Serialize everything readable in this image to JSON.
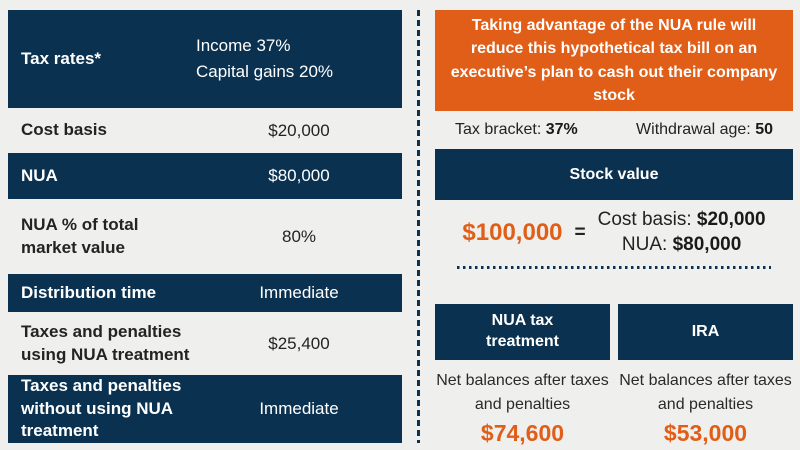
{
  "colors": {
    "navy": "#0b3150",
    "orange": "#e05e17",
    "background": "#efefee",
    "white": "#ffffff",
    "text_dark": "#232323"
  },
  "left_table": {
    "rows": [
      {
        "label": "Tax rates*",
        "value_lines": [
          "Income 37%",
          "Capital gains 20%"
        ],
        "style": "navy"
      },
      {
        "label": "Cost basis",
        "value": "$20,000",
        "style": "light"
      },
      {
        "label": "NUA",
        "value": "$80,000",
        "style": "navy"
      },
      {
        "label": "NUA % of total market value",
        "value": "80%",
        "style": "light"
      },
      {
        "label": "Distribution time",
        "value": "Immediate",
        "style": "navy"
      },
      {
        "label": "Taxes and penalties using NUA treatment",
        "value": "$25,400",
        "style": "light"
      },
      {
        "label": "Taxes and penalties without using NUA treatment",
        "value": "Immediate",
        "style": "navy"
      }
    ]
  },
  "right_panel": {
    "headline": "Taking advantage of the NUA rule will reduce this hypothetical tax bill on an executive’s plan to cash out their company stock",
    "tax_bracket": {
      "label": "Tax bracket: ",
      "value": "37%"
    },
    "withdrawal_age": {
      "label": "Withdrawal age: ",
      "value": "50"
    },
    "stock_value": {
      "header": "Stock value",
      "total": "$100,000",
      "equals_sign": "=",
      "cost_basis_label": "Cost basis: ",
      "cost_basis_value": "$20,000",
      "nua_label": "NUA: ",
      "nua_value": "$80,000"
    },
    "comparison_columns": [
      {
        "header": "NUA tax treatment",
        "description": "Net balances after taxes and penalties",
        "value": "$74,600"
      },
      {
        "header": "IRA",
        "description": "Net balances after taxes and penalties",
        "value": "$53,000"
      }
    ]
  },
  "chart_data": {
    "type": "table",
    "title": "Taking advantage of the NUA rule will reduce this hypothetical tax bill on an executive’s plan to cash out their company stock",
    "assumptions": {
      "income_tax_rate_pct": 37,
      "capital_gains_rate_pct": 20,
      "tax_bracket_pct": 37,
      "withdrawal_age": 50,
      "stock_value_usd": 100000,
      "cost_basis_usd": 20000,
      "nua_usd": 80000,
      "nua_pct_of_market_value": 80,
      "distribution_time": "Immediate",
      "taxes_penalties_using_nua_usd": 25400,
      "taxes_penalties_without_nua": "Immediate"
    },
    "comparison": {
      "metric": "Net balances after taxes and penalties",
      "categories": [
        "NUA tax treatment",
        "IRA"
      ],
      "values": [
        74600,
        53000
      ]
    }
  }
}
